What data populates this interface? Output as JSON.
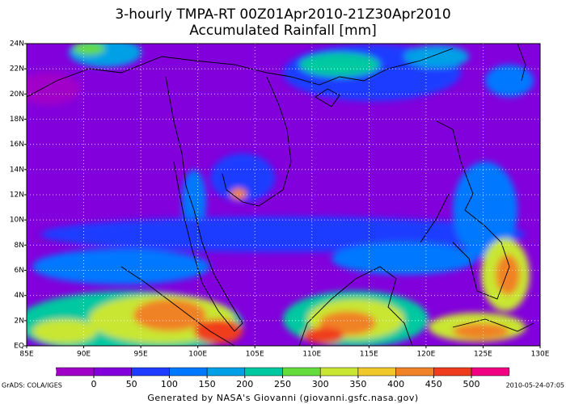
{
  "header": {
    "title": "3-hourly TMPA-RT 00Z01Apr2010-21Z30Apr2010",
    "subtitle": "Accumulated Rainfall [mm]"
  },
  "map": {
    "lat_labels": [
      "EQ",
      "2N",
      "4N",
      "6N",
      "8N",
      "10N",
      "12N",
      "14N",
      "16N",
      "18N",
      "20N",
      "22N",
      "24N"
    ],
    "lon_labels": [
      "85E",
      "90E",
      "95E",
      "100E",
      "105E",
      "110E",
      "115E",
      "120E",
      "125E",
      "130E"
    ]
  },
  "legend": {
    "values": [
      0,
      50,
      100,
      150,
      200,
      250,
      300,
      350,
      400,
      450,
      500
    ],
    "colors": [
      "#a000c8",
      "#8200dc",
      "#1e3cff",
      "#0078ff",
      "#00a0e6",
      "#00c8a0",
      "#64dc3c",
      "#c8e632",
      "#f0c828",
      "#f08228",
      "#f03c1e",
      "#f00082"
    ]
  },
  "footer": {
    "left": "GrADS: COLA/IGES",
    "right": "2010-05-24-07:05",
    "credit": "Generated by NASA's Giovanni (giovanni.gsfc.nasa.gov)"
  }
}
